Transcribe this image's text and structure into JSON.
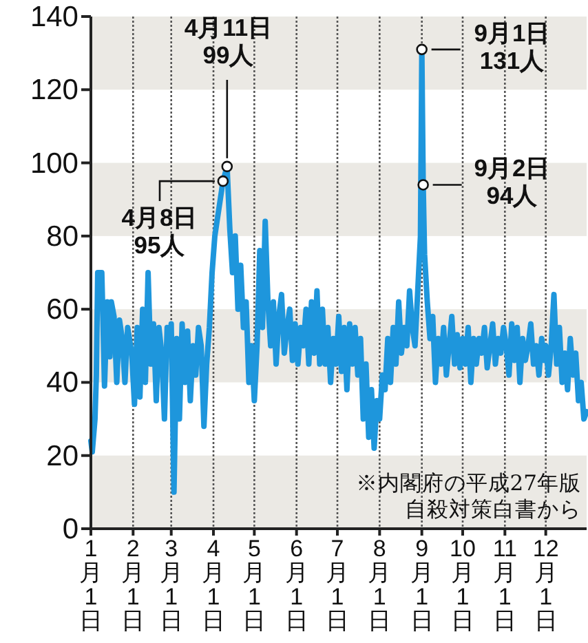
{
  "chart_data": {
    "type": "line",
    "x": [
      "--01-01",
      "--01-02",
      "--01-04",
      "--01-05",
      "--01-06",
      "--01-09",
      "--01-10",
      "--01-11",
      "--01-13",
      "--01-15",
      "--01-16",
      "--01-18",
      "--01-20",
      "--01-22",
      "--01-24",
      "--01-26",
      "--01-28",
      "--01-31",
      "--02-02",
      "--02-04",
      "--02-06",
      "--02-08",
      "--02-10",
      "--02-12",
      "--02-14",
      "--02-16",
      "--02-18",
      "--02-20",
      "--02-22",
      "--02-24",
      "--02-26",
      "--02-28",
      "--03-01",
      "--03-03",
      "--03-05",
      "--03-07",
      "--03-09",
      "--03-11",
      "--03-13",
      "--03-15",
      "--03-17",
      "--03-19",
      "--03-21",
      "--03-23",
      "--03-25",
      "--03-27",
      "--03-29",
      "--03-31",
      "--04-02",
      "--04-04",
      "--04-06",
      "--04-08",
      "--04-11",
      "--04-13",
      "--04-15",
      "--04-17",
      "--04-19",
      "--04-21",
      "--04-23",
      "--04-25",
      "--04-27",
      "--04-29",
      "--05-01",
      "--05-03",
      "--05-05",
      "--05-07",
      "--05-09",
      "--05-11",
      "--05-13",
      "--05-15",
      "--05-17",
      "--05-19",
      "--05-21",
      "--05-23",
      "--05-25",
      "--05-27",
      "--05-29",
      "--05-31",
      "--06-02",
      "--06-04",
      "--06-06",
      "--06-08",
      "--06-10",
      "--06-12",
      "--06-14",
      "--06-16",
      "--06-18",
      "--06-20",
      "--06-22",
      "--06-24",
      "--06-26",
      "--06-28",
      "--06-30",
      "--07-02",
      "--07-04",
      "--07-06",
      "--07-08",
      "--07-10",
      "--07-12",
      "--07-14",
      "--07-16",
      "--07-18",
      "--07-20",
      "--07-22",
      "--07-24",
      "--07-26",
      "--07-28",
      "--07-30",
      "--08-01",
      "--08-03",
      "--08-05",
      "--08-07",
      "--08-09",
      "--08-11",
      "--08-13",
      "--08-15",
      "--08-17",
      "--08-19",
      "--08-21",
      "--08-23",
      "--08-25",
      "--08-27",
      "--08-29",
      "--08-31",
      "--09-01",
      "--09-02",
      "--09-03",
      "--09-05",
      "--09-07",
      "--09-09",
      "--09-11",
      "--09-13",
      "--09-15",
      "--09-17",
      "--09-19",
      "--09-21",
      "--09-23",
      "--09-25",
      "--09-27",
      "--09-29",
      "--10-01",
      "--10-03",
      "--10-05",
      "--10-07",
      "--10-09",
      "--10-11",
      "--10-13",
      "--10-15",
      "--10-17",
      "--10-19",
      "--10-21",
      "--10-23",
      "--10-25",
      "--10-27",
      "--10-29",
      "--10-31",
      "--11-02",
      "--11-04",
      "--11-06",
      "--11-08",
      "--11-10",
      "--11-12",
      "--11-14",
      "--11-16",
      "--11-18",
      "--11-20",
      "--11-22",
      "--11-24",
      "--11-26",
      "--11-28",
      "--11-30",
      "--12-01",
      "--12-03",
      "--12-05",
      "--12-07",
      "--12-09",
      "--12-11",
      "--12-13",
      "--12-15",
      "--12-17",
      "--12-19",
      "--12-21",
      "--12-23",
      "--12-25",
      "--12-27",
      "--12-29",
      "--12-31"
    ],
    "series": [
      {
        "color": "#1e96dc",
        "values": [
          24,
          21,
          30,
          42,
          70,
          70,
          55,
          39,
          62,
          47,
          62,
          58,
          40,
          57,
          52,
          40,
          55,
          48,
          34,
          55,
          36,
          60,
          40,
          70,
          45,
          56,
          35,
          55,
          48,
          30,
          55,
          50,
          56,
          10,
          52,
          30,
          56,
          40,
          54,
          35,
          50,
          42,
          55,
          50,
          28,
          45,
          55,
          70,
          80,
          85,
          90,
          95,
          99,
          82,
          70,
          80,
          60,
          72,
          55,
          62,
          40,
          50,
          35,
          50,
          76,
          55,
          84,
          62,
          50,
          62,
          45,
          58,
          64,
          48,
          55,
          60,
          46,
          56,
          45,
          55,
          50,
          60,
          45,
          62,
          48,
          65,
          45,
          60,
          45,
          55,
          40,
          52,
          45,
          58,
          43,
          55,
          38,
          56,
          45,
          55,
          42,
          52,
          30,
          45,
          25,
          38,
          22,
          35,
          30,
          42,
          38,
          52,
          40,
          55,
          45,
          62,
          48,
          55,
          50,
          65,
          55,
          50,
          65,
          80,
          131,
          94,
          75,
          62,
          52,
          58,
          40,
          52,
          45,
          55,
          42,
          50,
          58,
          45,
          53,
          44,
          52,
          45,
          55,
          40,
          52,
          45,
          52,
          48,
          55,
          44,
          50,
          56,
          45,
          52,
          48,
          55,
          50,
          42,
          56,
          46,
          55,
          40,
          52,
          46,
          50,
          56,
          45,
          50,
          42,
          52,
          46,
          50,
          42,
          50,
          64,
          45,
          55,
          40,
          48,
          38,
          52,
          42,
          48,
          35,
          40,
          30,
          32
        ]
      }
    ],
    "xlim": [
      "--01-01",
      "--12-31"
    ],
    "xticks": [
      {
        "value": "--01-01",
        "label": "1月1日"
      },
      {
        "value": "--02-01",
        "label": "2月1日"
      },
      {
        "value": "--03-01",
        "label": "3月1日"
      },
      {
        "value": "--04-01",
        "label": "4月1日"
      },
      {
        "value": "--05-01",
        "label": "5月1日"
      },
      {
        "value": "--06-01",
        "label": "6月1日"
      },
      {
        "value": "--07-01",
        "label": "7月1日"
      },
      {
        "value": "--08-01",
        "label": "8月1日"
      },
      {
        "value": "--09-01",
        "label": "9月1日"
      },
      {
        "value": "--10-01",
        "label": "10月1日"
      },
      {
        "value": "--11-01",
        "label": "11月1日"
      },
      {
        "value": "--12-01",
        "label": "12月1日"
      }
    ],
    "ylim": [
      0,
      140
    ],
    "yticks": [
      0,
      20,
      40,
      60,
      80,
      100,
      120,
      140
    ],
    "grid": "x",
    "bands": [
      {
        "axis": "y",
        "from": 0,
        "to": 20,
        "color": "#ebe9e4"
      },
      {
        "axis": "y",
        "from": 40,
        "to": 60,
        "color": "#ebe9e4"
      },
      {
        "axis": "y",
        "from": 80,
        "to": 100,
        "color": "#ebe9e4"
      },
      {
        "axis": "y",
        "from": 120,
        "to": 140,
        "color": "#ebe9e4"
      }
    ],
    "annotations": [
      {
        "text": "4月8日\n95人",
        "x": "--04-08",
        "y": 95
      },
      {
        "text": "4月11日\n99人",
        "x": "--04-11",
        "y": 99
      },
      {
        "text": "9月1日\n131人",
        "x": "--09-01",
        "y": 131
      },
      {
        "text": "9月2日\n94人",
        "x": "--09-02",
        "y": 94
      },
      "※内閣府の平成27年版",
      "自殺対策白書から"
    ]
  }
}
